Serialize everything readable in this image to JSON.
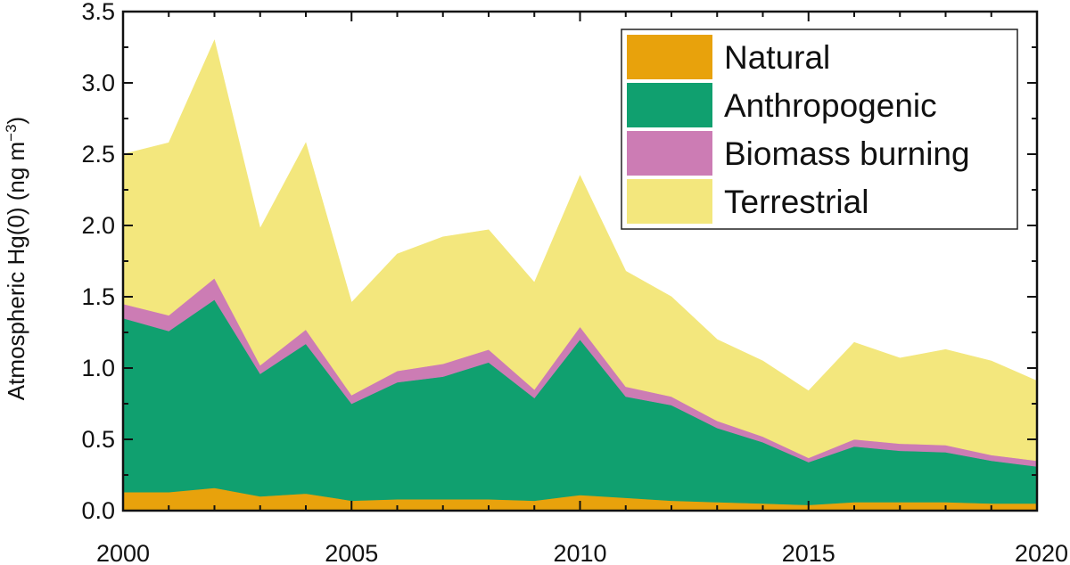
{
  "chart_data": {
    "type": "area",
    "stacked": true,
    "title": "",
    "xlabel": "",
    "ylabel": "Atmospheric Hg(0) (ng m",
    "ylabel_sup": "−3",
    "ylabel_close": ")",
    "xlim": [
      2000,
      2020
    ],
    "ylim": [
      0,
      3.5
    ],
    "x_ticks": [
      "2000",
      "2005",
      "2010",
      "2015",
      "2020"
    ],
    "y_ticks": [
      "0.0",
      "0.5",
      "1.0",
      "1.5",
      "2.0",
      "2.5",
      "3.0",
      "3.5"
    ],
    "grid": false,
    "legend_position": "top-right",
    "x": [
      2000,
      2001,
      2002,
      2003,
      2004,
      2005,
      2006,
      2007,
      2008,
      2009,
      2010,
      2011,
      2012,
      2013,
      2014,
      2015,
      2016,
      2017,
      2018,
      2019,
      2020
    ],
    "series": [
      {
        "name": "Natural",
        "color": "#E8A20C",
        "values": [
          0.13,
          0.13,
          0.16,
          0.1,
          0.12,
          0.07,
          0.08,
          0.08,
          0.08,
          0.07,
          0.11,
          0.09,
          0.07,
          0.06,
          0.05,
          0.04,
          0.06,
          0.06,
          0.06,
          0.05,
          0.05
        ]
      },
      {
        "name": "Anthropogenic",
        "color": "#10A06F",
        "values": [
          1.22,
          1.13,
          1.32,
          0.86,
          1.05,
          0.68,
          0.82,
          0.86,
          0.96,
          0.72,
          1.09,
          0.71,
          0.67,
          0.52,
          0.43,
          0.3,
          0.39,
          0.36,
          0.35,
          0.3,
          0.26
        ]
      },
      {
        "name": "Biomass burning",
        "color": "#CC7CB4",
        "values": [
          0.1,
          0.11,
          0.15,
          0.06,
          0.1,
          0.06,
          0.08,
          0.09,
          0.09,
          0.06,
          0.09,
          0.07,
          0.06,
          0.05,
          0.04,
          0.03,
          0.05,
          0.05,
          0.05,
          0.04,
          0.04
        ]
      },
      {
        "name": "Terrestrial",
        "color": "#F3E77D",
        "values": [
          1.05,
          1.21,
          1.67,
          0.96,
          1.31,
          0.65,
          0.82,
          0.89,
          0.84,
          0.75,
          1.06,
          0.81,
          0.7,
          0.57,
          0.53,
          0.47,
          0.68,
          0.6,
          0.67,
          0.66,
          0.56
        ]
      }
    ]
  }
}
